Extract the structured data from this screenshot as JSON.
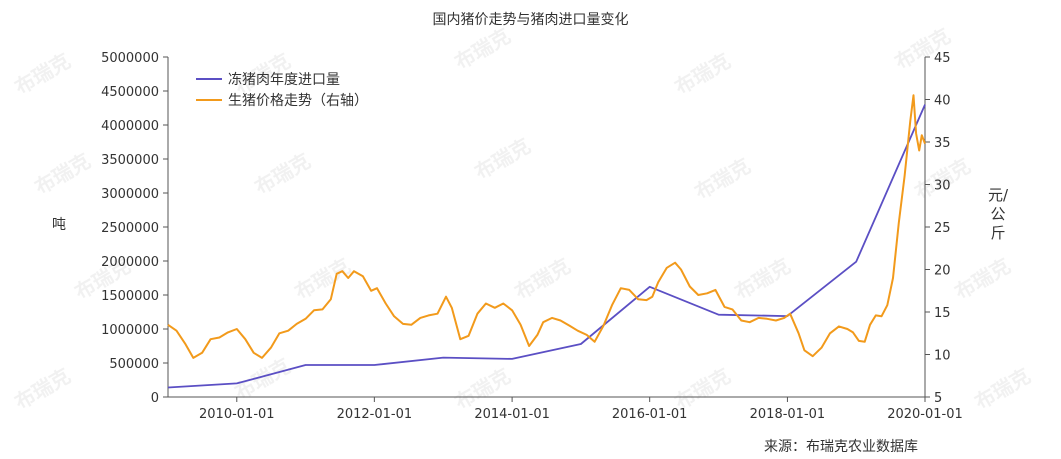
{
  "chart_data": {
    "type": "line",
    "title": "国内猪价走势与猪肉进口量变化",
    "source": "来源：布瑞克农业数据库",
    "watermark": "布瑞克",
    "legend_position": "top-left",
    "grid": false,
    "x_axis": {
      "type": "date",
      "range": [
        "2009-01-01",
        "2020-01-01"
      ],
      "tick_labels": [
        "2010-01-01",
        "2012-01-01",
        "2014-01-01",
        "2016-01-01",
        "2018-01-01",
        "2020-01-01"
      ]
    },
    "y_left": {
      "label": "吨",
      "ylim": [
        0,
        5000000
      ],
      "ticks": [
        "0",
        "500000",
        "1000000",
        "1500000",
        "2000000",
        "2500000",
        "3000000",
        "3500000",
        "4000000",
        "4500000",
        "5000000"
      ]
    },
    "y_right": {
      "label": "元/公斤",
      "ylim": [
        5,
        45
      ],
      "ticks": [
        "5",
        "10",
        "15",
        "20",
        "25",
        "30",
        "35",
        "40",
        "45"
      ]
    },
    "series": [
      {
        "name": "冻猪肉年度进口量",
        "axis": "left",
        "color": "#5b4fc4",
        "points": [
          [
            "2009-01-01",
            140000
          ],
          [
            "2010-01-01",
            200000
          ],
          [
            "2011-01-01",
            470000
          ],
          [
            "2012-01-01",
            470000
          ],
          [
            "2013-01-01",
            580000
          ],
          [
            "2014-01-01",
            560000
          ],
          [
            "2015-01-01",
            780000
          ],
          [
            "2016-01-01",
            1620000
          ],
          [
            "2017-01-01",
            1210000
          ],
          [
            "2018-01-01",
            1190000
          ],
          [
            "2019-01-01",
            1990000
          ],
          [
            "2020-01-01",
            4300000
          ]
        ]
      },
      {
        "name": "生猪价格走势（右轴）",
        "axis": "right",
        "color": "#f29a1b",
        "points": [
          [
            "2009-01-01",
            13.5
          ],
          [
            "2009-02-15",
            12.8
          ],
          [
            "2009-04-01",
            11.3
          ],
          [
            "2009-05-15",
            9.6
          ],
          [
            "2009-07-01",
            10.2
          ],
          [
            "2009-08-15",
            11.8
          ],
          [
            "2009-10-01",
            12.0
          ],
          [
            "2009-11-15",
            12.6
          ],
          [
            "2010-01-01",
            13.0
          ],
          [
            "2010-02-15",
            11.8
          ],
          [
            "2010-04-01",
            10.2
          ],
          [
            "2010-05-15",
            9.6
          ],
          [
            "2010-07-01",
            10.8
          ],
          [
            "2010-08-15",
            12.5
          ],
          [
            "2010-10-01",
            12.8
          ],
          [
            "2010-11-15",
            13.6
          ],
          [
            "2011-01-01",
            14.2
          ],
          [
            "2011-02-15",
            15.2
          ],
          [
            "2011-04-01",
            15.3
          ],
          [
            "2011-05-15",
            16.5
          ],
          [
            "2011-06-15",
            19.5
          ],
          [
            "2011-07-15",
            19.8
          ],
          [
            "2011-08-15",
            19.0
          ],
          [
            "2011-09-15",
            19.8
          ],
          [
            "2011-11-01",
            19.2
          ],
          [
            "2011-12-15",
            17.5
          ],
          [
            "2012-01-15",
            17.8
          ],
          [
            "2012-03-01",
            16.0
          ],
          [
            "2012-04-15",
            14.5
          ],
          [
            "2012-06-01",
            13.6
          ],
          [
            "2012-07-15",
            13.5
          ],
          [
            "2012-09-01",
            14.3
          ],
          [
            "2012-10-15",
            14.6
          ],
          [
            "2012-12-01",
            14.8
          ],
          [
            "2013-01-15",
            16.8
          ],
          [
            "2013-02-15",
            15.5
          ],
          [
            "2013-04-01",
            11.8
          ],
          [
            "2013-05-15",
            12.2
          ],
          [
            "2013-07-01",
            14.8
          ],
          [
            "2013-08-15",
            16.0
          ],
          [
            "2013-10-01",
            15.5
          ],
          [
            "2013-11-15",
            16.0
          ],
          [
            "2014-01-01",
            15.2
          ],
          [
            "2014-02-15",
            13.5
          ],
          [
            "2014-04-01",
            11.0
          ],
          [
            "2014-05-15",
            12.3
          ],
          [
            "2014-06-15",
            13.8
          ],
          [
            "2014-08-01",
            14.3
          ],
          [
            "2014-09-15",
            14.0
          ],
          [
            "2014-11-01",
            13.4
          ],
          [
            "2014-12-15",
            12.8
          ],
          [
            "2015-02-01",
            12.3
          ],
          [
            "2015-03-15",
            11.5
          ],
          [
            "2015-05-01",
            13.4
          ],
          [
            "2015-06-15",
            15.8
          ],
          [
            "2015-08-01",
            17.8
          ],
          [
            "2015-09-15",
            17.6
          ],
          [
            "2015-11-01",
            16.5
          ],
          [
            "2015-12-15",
            16.4
          ],
          [
            "2016-01-15",
            16.8
          ],
          [
            "2016-02-15",
            18.5
          ],
          [
            "2016-04-01",
            20.2
          ],
          [
            "2016-05-15",
            20.8
          ],
          [
            "2016-06-15",
            20.0
          ],
          [
            "2016-08-01",
            18.0
          ],
          [
            "2016-09-15",
            17.0
          ],
          [
            "2016-11-01",
            17.2
          ],
          [
            "2016-12-15",
            17.6
          ],
          [
            "2017-02-01",
            15.6
          ],
          [
            "2017-03-15",
            15.3
          ],
          [
            "2017-05-01",
            14.0
          ],
          [
            "2017-06-15",
            13.8
          ],
          [
            "2017-08-01",
            14.3
          ],
          [
            "2017-09-15",
            14.2
          ],
          [
            "2017-11-01",
            14.0
          ],
          [
            "2017-12-15",
            14.3
          ],
          [
            "2018-01-15",
            14.8
          ],
          [
            "2018-03-01",
            12.5
          ],
          [
            "2018-04-01",
            10.5
          ],
          [
            "2018-05-15",
            9.8
          ],
          [
            "2018-07-01",
            10.8
          ],
          [
            "2018-08-15",
            12.5
          ],
          [
            "2018-10-01",
            13.3
          ],
          [
            "2018-11-15",
            13.0
          ],
          [
            "2018-12-15",
            12.6
          ],
          [
            "2019-01-15",
            11.6
          ],
          [
            "2019-02-15",
            11.5
          ],
          [
            "2019-03-15",
            13.5
          ],
          [
            "2019-04-15",
            14.6
          ],
          [
            "2019-05-15",
            14.5
          ],
          [
            "2019-06-15",
            15.8
          ],
          [
            "2019-07-15",
            19.0
          ],
          [
            "2019-08-15",
            25.5
          ],
          [
            "2019-09-15",
            31.0
          ],
          [
            "2019-10-15",
            37.5
          ],
          [
            "2019-11-01",
            40.5
          ],
          [
            "2019-11-15",
            36.0
          ],
          [
            "2019-12-01",
            34.0
          ],
          [
            "2019-12-15",
            35.8
          ],
          [
            "2020-01-01",
            34.8
          ]
        ]
      }
    ]
  }
}
